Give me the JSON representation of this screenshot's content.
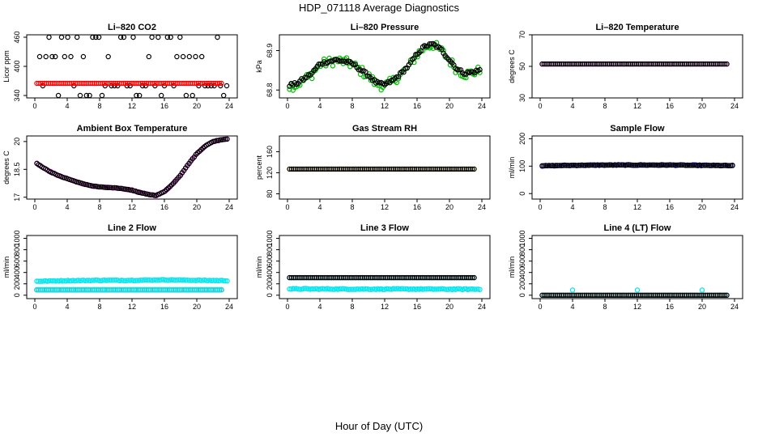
{
  "figure": {
    "title": "HDP_071118  Average Diagnostics",
    "xlabel": "Hour of Day (UTC)"
  },
  "chart_data": [
    {
      "type": "scatter",
      "key": "co2",
      "title": "Li–820 CO2",
      "ylabel": "Licor ppm",
      "xlim": [
        0,
        24
      ],
      "xticks": [
        0,
        4,
        8,
        12,
        16,
        20,
        24
      ],
      "ylim": [
        335,
        465
      ],
      "yticks": [
        340,
        400,
        460
      ],
      "series": [
        {
          "name": "CO2 (black)",
          "color": "#000000",
          "kind": "levels",
          "levels": [
            340,
            360,
            420,
            460
          ]
        },
        {
          "name": "CO2 (red)",
          "color": "#ff0000",
          "kind": "flat",
          "value": 365
        }
      ]
    },
    {
      "type": "scatter",
      "key": "pressure",
      "title": "Li–820 Pressure",
      "ylabel": "kPa",
      "xlim": [
        0,
        24
      ],
      "xticks": [
        0,
        4,
        8,
        12,
        16,
        20,
        24
      ],
      "ylim": [
        68.78,
        68.94
      ],
      "yticks": [
        68.8,
        68.9
      ],
      "series": [
        {
          "name": "pressure (green)",
          "color": "#00bb00",
          "kind": "curve",
          "spread": 0.012,
          "x": [
            0,
            1,
            2,
            3,
            4,
            5,
            6,
            7,
            8,
            9,
            10,
            11,
            12,
            13,
            14,
            15,
            16,
            17,
            18,
            19,
            20,
            21,
            22,
            23,
            24
          ],
          "y": [
            68.81,
            68.812,
            68.825,
            68.84,
            68.865,
            68.87,
            68.875,
            68.872,
            68.865,
            68.85,
            68.835,
            68.815,
            68.81,
            68.822,
            68.84,
            68.86,
            68.89,
            68.91,
            68.915,
            68.9,
            68.875,
            68.85,
            68.84,
            68.845,
            68.85
          ]
        },
        {
          "name": "pressure (black)",
          "color": "#000000",
          "kind": "curve",
          "spread": 0.004,
          "x": [
            0,
            1,
            2,
            3,
            4,
            5,
            6,
            7,
            8,
            9,
            10,
            11,
            12,
            13,
            14,
            15,
            16,
            17,
            18,
            19,
            20,
            21,
            22,
            23,
            24
          ],
          "y": [
            68.812,
            68.815,
            68.828,
            68.842,
            68.867,
            68.872,
            68.876,
            68.873,
            68.867,
            68.852,
            68.837,
            68.818,
            68.813,
            68.824,
            68.842,
            68.862,
            68.892,
            68.912,
            68.916,
            68.902,
            68.877,
            68.852,
            68.842,
            68.846,
            68.852
          ]
        }
      ]
    },
    {
      "type": "scatter",
      "key": "licor_temp",
      "title": "Li–820 Temperature",
      "ylabel": "degrees C",
      "xlim": [
        0,
        24
      ],
      "xticks": [
        0,
        4,
        8,
        12,
        16,
        20,
        24
      ],
      "ylim": [
        30,
        70
      ],
      "yticks": [
        30,
        50,
        70
      ],
      "series": [
        {
          "name": "cell temp (magenta)",
          "color": "#ff00ff",
          "kind": "flat",
          "value": 51.5
        },
        {
          "name": "cell temp (black)",
          "color": "#000000",
          "kind": "flat",
          "value": 51.5
        }
      ]
    },
    {
      "type": "scatter",
      "key": "box_temp",
      "title": "Ambient Box Temperature",
      "ylabel": "degrees C",
      "xlim": [
        0,
        24
      ],
      "xticks": [
        0,
        4,
        8,
        12,
        16,
        20,
        24
      ],
      "ylim": [
        16.9,
        20.3
      ],
      "yticks": [
        17.0,
        18.5,
        20.0
      ],
      "series": [
        {
          "name": "box temp (magenta)",
          "color": "#ff00ff",
          "kind": "curve",
          "spread": 0.02,
          "x": [
            0,
            1,
            2,
            3,
            4,
            5,
            6,
            7,
            8,
            9,
            10,
            11,
            12,
            13,
            14,
            15,
            16,
            17,
            18,
            19,
            20,
            21,
            22,
            23,
            24
          ],
          "y": [
            18.9,
            18.6,
            18.35,
            18.15,
            18.0,
            17.85,
            17.72,
            17.62,
            17.55,
            17.52,
            17.5,
            17.45,
            17.38,
            17.25,
            17.15,
            17.1,
            17.3,
            17.7,
            18.2,
            18.8,
            19.35,
            19.75,
            20.0,
            20.1,
            20.15
          ]
        },
        {
          "name": "box temp (black)",
          "color": "#000000",
          "kind": "curve",
          "spread": 0.01,
          "x": [
            0,
            1,
            2,
            3,
            4,
            5,
            6,
            7,
            8,
            9,
            10,
            11,
            12,
            13,
            14,
            15,
            16,
            17,
            18,
            19,
            20,
            21,
            22,
            23,
            24
          ],
          "y": [
            18.9,
            18.6,
            18.35,
            18.15,
            18.0,
            17.85,
            17.72,
            17.62,
            17.55,
            17.52,
            17.5,
            17.45,
            17.38,
            17.25,
            17.15,
            17.1,
            17.3,
            17.7,
            18.2,
            18.8,
            19.35,
            19.75,
            20.0,
            20.1,
            20.15
          ]
        }
      ]
    },
    {
      "type": "scatter",
      "key": "rh",
      "title": "Gas Stream RH",
      "ylabel": "percent",
      "xlim": [
        0,
        24
      ],
      "xticks": [
        0,
        4,
        8,
        12,
        16,
        20,
        24
      ],
      "ylim": [
        70,
        190
      ],
      "yticks": [
        80,
        120,
        160
      ],
      "series": [
        {
          "name": "RH (yellow)",
          "color": "#f5e000",
          "kind": "flat",
          "value": 127
        },
        {
          "name": "RH (black)",
          "color": "#000000",
          "kind": "flat",
          "value": 127
        }
      ]
    },
    {
      "type": "scatter",
      "key": "sample_flow",
      "title": "Sample Flow",
      "ylabel": "ml/min",
      "xlim": [
        0,
        24
      ],
      "xticks": [
        0,
        4,
        8,
        12,
        16,
        20,
        24
      ],
      "ylim": [
        -20,
        210
      ],
      "yticks": [
        0,
        100,
        200
      ],
      "series": [
        {
          "name": "sample flow (blue)",
          "color": "#0000ff",
          "kind": "curve",
          "spread": 1.5,
          "x": [
            0,
            4,
            8,
            12,
            16,
            20,
            24
          ],
          "y": [
            101,
            103,
            104,
            104,
            104,
            103,
            102
          ]
        },
        {
          "name": "sample flow (black)",
          "color": "#000000",
          "kind": "curve",
          "spread": 0.5,
          "x": [
            0,
            4,
            8,
            12,
            16,
            20,
            24
          ],
          "y": [
            101,
            103,
            104,
            104,
            104,
            103,
            102
          ]
        }
      ]
    },
    {
      "type": "scatter",
      "key": "line2",
      "title": "Line 2 Flow",
      "ylabel": "ml/min",
      "xlim": [
        0,
        24
      ],
      "xticks": [
        0,
        4,
        8,
        12,
        16,
        20,
        24
      ],
      "ylim": [
        -60,
        1050
      ],
      "yticks": [
        0,
        200,
        400,
        600,
        800,
        1000
      ],
      "series": [
        {
          "name": "line 2 (cyan)",
          "color": "#00e5ee",
          "kind": "curve",
          "spread": 6,
          "x": [
            0,
            4,
            8,
            12,
            16,
            20,
            24
          ],
          "y": [
            245,
            255,
            262,
            262,
            270,
            262,
            255
          ]
        },
        {
          "name": "line 2 (black)",
          "color": "#000000",
          "kind": "flat",
          "value": 95
        },
        {
          "name": "line 2 (cyan low)",
          "color": "#00e5ee",
          "kind": "flat",
          "value": 97
        }
      ]
    },
    {
      "type": "scatter",
      "key": "line3",
      "title": "Line 3 Flow",
      "ylabel": "ml/min",
      "xlim": [
        0,
        24
      ],
      "xticks": [
        0,
        4,
        8,
        12,
        16,
        20,
        24
      ],
      "ylim": [
        -60,
        1050
      ],
      "yticks": [
        0,
        200,
        400,
        600,
        800,
        1000
      ],
      "series": [
        {
          "name": "line 3 (cyan low)",
          "color": "#00e5ee",
          "kind": "curve",
          "spread": 8,
          "x": [
            0,
            4,
            8,
            12,
            16,
            20,
            24
          ],
          "y": [
            110,
            110,
            108,
            108,
            108,
            106,
            106
          ]
        },
        {
          "name": "line 3 (cyan high)",
          "color": "#00e5ee",
          "kind": "flat",
          "value": 308
        },
        {
          "name": "line 3 (black)",
          "color": "#000000",
          "kind": "flat",
          "value": 308
        }
      ]
    },
    {
      "type": "scatter",
      "key": "line4",
      "title": "Line 4 (LT) Flow",
      "ylabel": "ml/min",
      "xlim": [
        0,
        24
      ],
      "xticks": [
        0,
        4,
        8,
        12,
        16,
        20,
        24
      ],
      "ylim": [
        -60,
        1050
      ],
      "yticks": [
        0,
        200,
        400,
        600,
        800,
        1000
      ],
      "series": [
        {
          "name": "line 4 (cyan)",
          "color": "#00e5ee",
          "kind": "flat",
          "value": 0
        },
        {
          "name": "line 4 (black)",
          "color": "#000000",
          "kind": "flat",
          "value": 0
        },
        {
          "name": "line 4 (spikes)",
          "color": "#00e5ee",
          "kind": "points",
          "x": [
            4,
            12,
            20
          ],
          "y": [
            90,
            90,
            90
          ]
        }
      ]
    }
  ]
}
